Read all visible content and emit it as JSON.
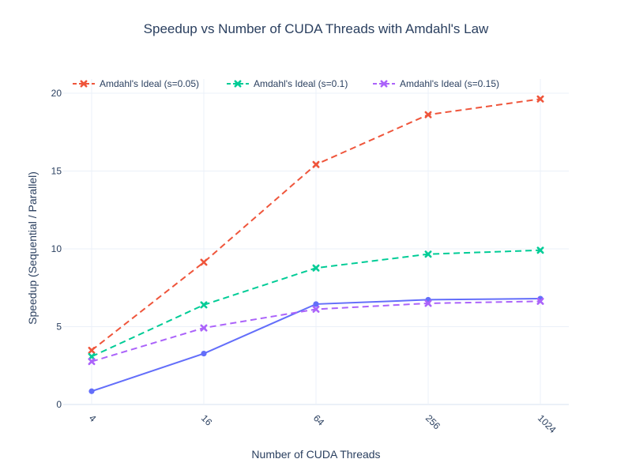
{
  "chart_data": {
    "type": "line",
    "title": "Speedup vs Number of CUDA Threads with Amdahl's Law",
    "xlabel": "Number of CUDA Threads",
    "ylabel": "Speedup (Sequential / Parallel)",
    "x_scale": "log2",
    "categories": [
      "4",
      "16",
      "64",
      "256",
      "1024"
    ],
    "x": [
      4,
      16,
      64,
      256,
      1024
    ],
    "ylim": [
      0,
      20
    ],
    "yticks": [
      0,
      5,
      10,
      15,
      20
    ],
    "grid": true,
    "legend_position": "top",
    "series": [
      {
        "name": "",
        "style": "solid",
        "marker": "circle",
        "color": "#636efa",
        "values": [
          0.85,
          3.27,
          6.45,
          6.73,
          6.8
        ],
        "show_in_legend": false
      },
      {
        "name": "Amdahl's Ideal (s=0.05)",
        "style": "dashed",
        "marker": "x",
        "color": "#ef553b",
        "values": [
          3.48,
          9.14,
          15.42,
          18.62,
          19.63
        ],
        "show_in_legend": true
      },
      {
        "name": "Amdahl's Ideal (s=0.1)",
        "style": "dashed",
        "marker": "x",
        "color": "#00cc96",
        "values": [
          3.08,
          6.4,
          8.77,
          9.66,
          9.91
        ],
        "show_in_legend": true
      },
      {
        "name": "Amdahl's Ideal (s=0.15)",
        "style": "dashed",
        "marker": "x",
        "color": "#ab63fa",
        "values": [
          2.76,
          4.92,
          6.12,
          6.5,
          6.63
        ],
        "show_in_legend": true
      }
    ]
  }
}
